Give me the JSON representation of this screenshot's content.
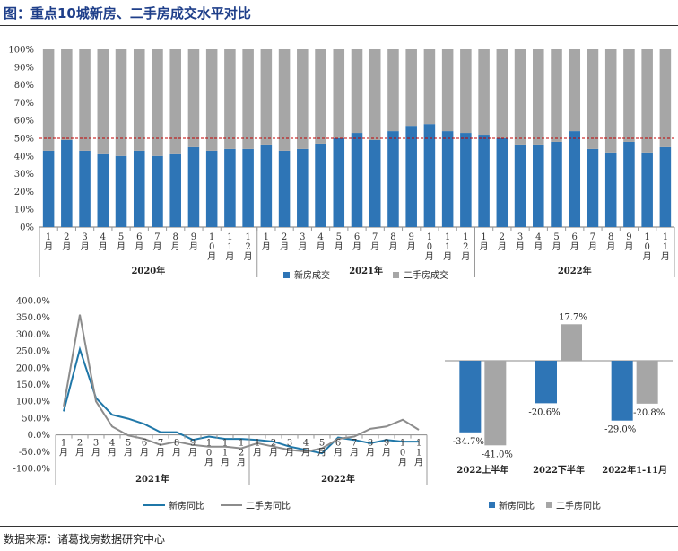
{
  "title": "图：重点10城新房、二手房成交水平对比",
  "source": "数据来源：诸葛找房数据研究中心",
  "colors": {
    "new": "#2e75b6",
    "second": "#a6a6a6",
    "line_new": "#1f77a8",
    "line_second": "#8c8c8c",
    "ref": "#c00000"
  },
  "chart_data": [
    {
      "type": "bar",
      "stacked": true,
      "percent": true,
      "ylim": [
        0,
        100
      ],
      "yticks": [
        "0%",
        "10%",
        "20%",
        "30%",
        "40%",
        "50%",
        "60%",
        "70%",
        "80%",
        "90%",
        "100%"
      ],
      "ref_line": 50,
      "categories": [
        "1月",
        "2月",
        "3月",
        "4月",
        "5月",
        "6月",
        "7月",
        "8月",
        "9月",
        "10月",
        "11月",
        "12月",
        "1月",
        "2月",
        "3月",
        "4月",
        "5月",
        "6月",
        "7月",
        "8月",
        "9月",
        "10月",
        "11月",
        "12月",
        "1月",
        "2月",
        "3月",
        "4月",
        "5月",
        "6月",
        "7月",
        "8月",
        "9月",
        "10月",
        "11月"
      ],
      "groups": [
        {
          "label": "2020年",
          "start": 0,
          "end": 11
        },
        {
          "label": "2021年",
          "start": 12,
          "end": 23
        },
        {
          "label": "2022年",
          "start": 24,
          "end": 34
        }
      ],
      "series": [
        {
          "name": "新房成交",
          "values": [
            43,
            49,
            43,
            41,
            40,
            43,
            40,
            41,
            45,
            43,
            44,
            44,
            46,
            43,
            44,
            47,
            50,
            53,
            49,
            54,
            57,
            58,
            54,
            53,
            52,
            50,
            46,
            46,
            48,
            54,
            44,
            42,
            48,
            42,
            45
          ]
        },
        {
          "name": "二手房成交",
          "values": [
            57,
            51,
            57,
            59,
            60,
            57,
            60,
            59,
            55,
            57,
            56,
            56,
            54,
            57,
            56,
            53,
            50,
            47,
            51,
            46,
            43,
            42,
            46,
            47,
            48,
            50,
            54,
            54,
            52,
            46,
            56,
            58,
            52,
            58,
            55
          ]
        }
      ],
      "legend": "bottom"
    },
    {
      "type": "line",
      "ylim": [
        -100,
        400
      ],
      "yticks": [
        "400.0%",
        "350.0%",
        "300.0%",
        "250.0%",
        "200.0%",
        "150.0%",
        "100.0%",
        "50.0%",
        "0.0%",
        "-50.0%",
        "-100.0%"
      ],
      "categories": [
        "1月",
        "2月",
        "3月",
        "4月",
        "5月",
        "6月",
        "7月",
        "8月",
        "9月",
        "10月",
        "11月",
        "12月",
        "1月",
        "2月",
        "3月",
        "4月",
        "5月",
        "6月",
        "7月",
        "8月",
        "9月",
        "10月",
        "11月"
      ],
      "groups": [
        {
          "label": "2021年",
          "start": 0,
          "end": 11
        },
        {
          "label": "2022年",
          "start": 12,
          "end": 22
        }
      ],
      "series": [
        {
          "name": "新房同比",
          "values": [
            70,
            255,
            110,
            60,
            48,
            32,
            8,
            8,
            -15,
            -5,
            -12,
            -12,
            -15,
            -20,
            -35,
            -45,
            -55,
            -8,
            -15,
            -25,
            -15,
            -20,
            -20
          ]
        },
        {
          "name": "二手房同比",
          "values": [
            85,
            358,
            100,
            25,
            -2,
            -12,
            -30,
            -20,
            -30,
            -35,
            -35,
            -40,
            -25,
            -35,
            -45,
            -50,
            -40,
            -12,
            -5,
            18,
            25,
            45,
            15
          ]
        }
      ],
      "legend": "bottom"
    },
    {
      "type": "bar",
      "categories": [
        "2022上半年",
        "2022下半年",
        "2022年1-11月"
      ],
      "series": [
        {
          "name": "新房同比",
          "values": [
            -34.7,
            -20.6,
            -29.0
          ],
          "labels": [
            "-34.7%",
            "-20.6%",
            "-29.0%"
          ]
        },
        {
          "name": "二手房同比",
          "values": [
            -41.0,
            17.7,
            -20.8
          ],
          "labels": [
            "-41.0%",
            "17.7%",
            "-20.8%"
          ]
        }
      ],
      "legend": "bottom"
    }
  ]
}
